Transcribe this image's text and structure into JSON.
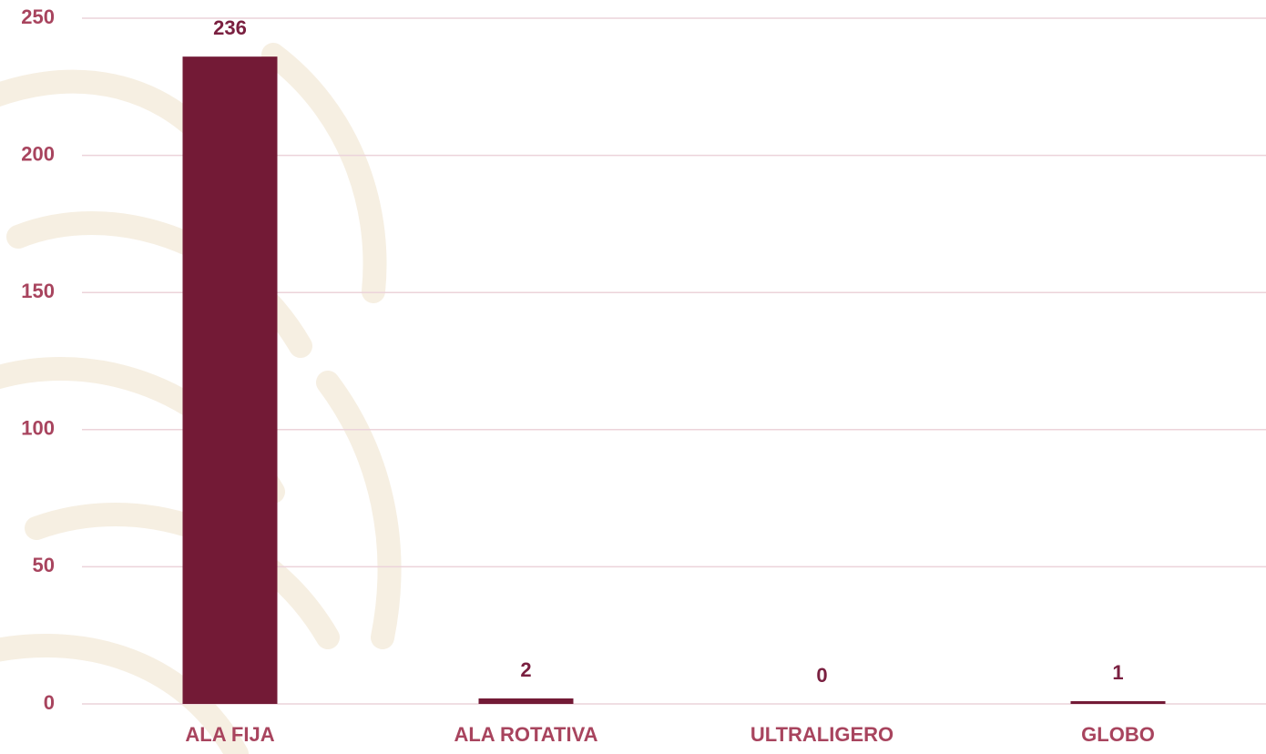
{
  "chart_data": {
    "type": "bar",
    "categories": [
      "ALA FIJA",
      "ALA ROTATIVA",
      "ULTRALIGERO",
      "GLOBO"
    ],
    "values": [
      236,
      2,
      0,
      1
    ],
    "color": "#731a36",
    "ylim": [
      0,
      250
    ],
    "yticks": [
      0,
      50,
      100,
      150,
      200,
      250
    ],
    "grid": true
  }
}
